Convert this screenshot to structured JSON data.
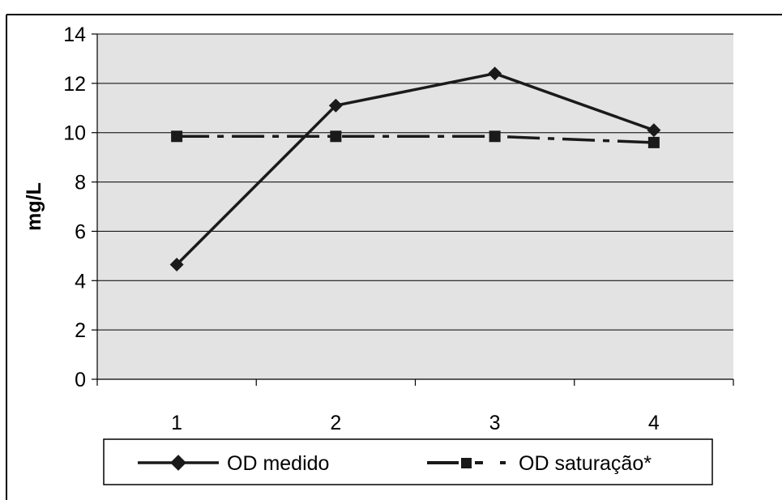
{
  "chart_data": {
    "type": "line",
    "categories": [
      "1",
      "2",
      "3",
      "4"
    ],
    "ylabel": "mg/L",
    "xlabel": "",
    "title": "",
    "ylim": [
      0,
      14
    ],
    "yticks": [
      0,
      2,
      4,
      6,
      8,
      10,
      12,
      14
    ],
    "grid": "horizontal",
    "legend_position": "bottom",
    "plot_background": "#e3e3e3",
    "series": [
      {
        "name": "OD medido",
        "values": [
          4.65,
          11.1,
          12.4,
          10.1
        ],
        "marker": "diamond",
        "line": "solid",
        "color": "#1a1a1a"
      },
      {
        "name": "OD saturação*",
        "values": [
          9.85,
          9.85,
          9.85,
          9.6
        ],
        "marker": "square",
        "line": "dash-dot",
        "color": "#1a1a1a"
      }
    ]
  }
}
